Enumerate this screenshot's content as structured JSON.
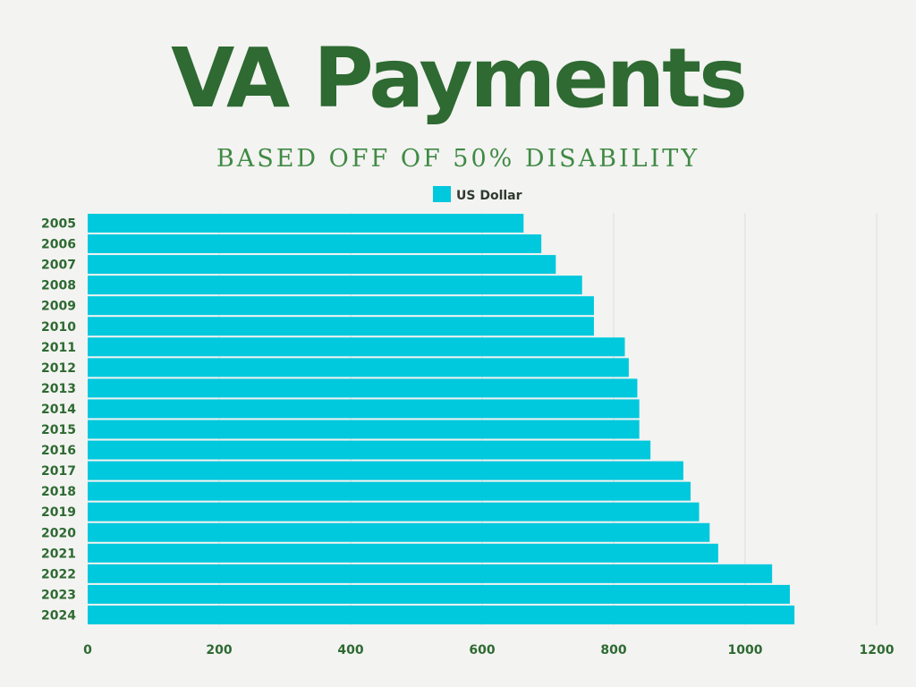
{
  "title": "VA Payments",
  "subtitle": "BASED OFF OF 50% DISABILITY",
  "colors": {
    "bar": "#00c8dd",
    "title": "#2e6a32",
    "subtitle": "#3f8a44",
    "grid": "#dcdcdc"
  },
  "chart_data": {
    "type": "bar",
    "orientation": "horizontal",
    "categories": [
      "2005",
      "2006",
      "2007",
      "2008",
      "2009",
      "2010",
      "2011",
      "2012",
      "2013",
      "2014",
      "2015",
      "2016",
      "2017",
      "2018",
      "2019",
      "2020",
      "2021",
      "2022",
      "2023",
      "2024"
    ],
    "series": [
      {
        "name": "US Dollar",
        "values": [
          663,
          690,
          712,
          752,
          770,
          770,
          817,
          823,
          836,
          839,
          839,
          856,
          906,
          917,
          930,
          946,
          959,
          1041,
          1068,
          1075
        ]
      }
    ],
    "xlim": [
      0,
      1200
    ],
    "xticks": [
      0,
      200,
      400,
      600,
      800,
      1000,
      1200
    ],
    "grid": "vertical",
    "legend": "top-center"
  }
}
